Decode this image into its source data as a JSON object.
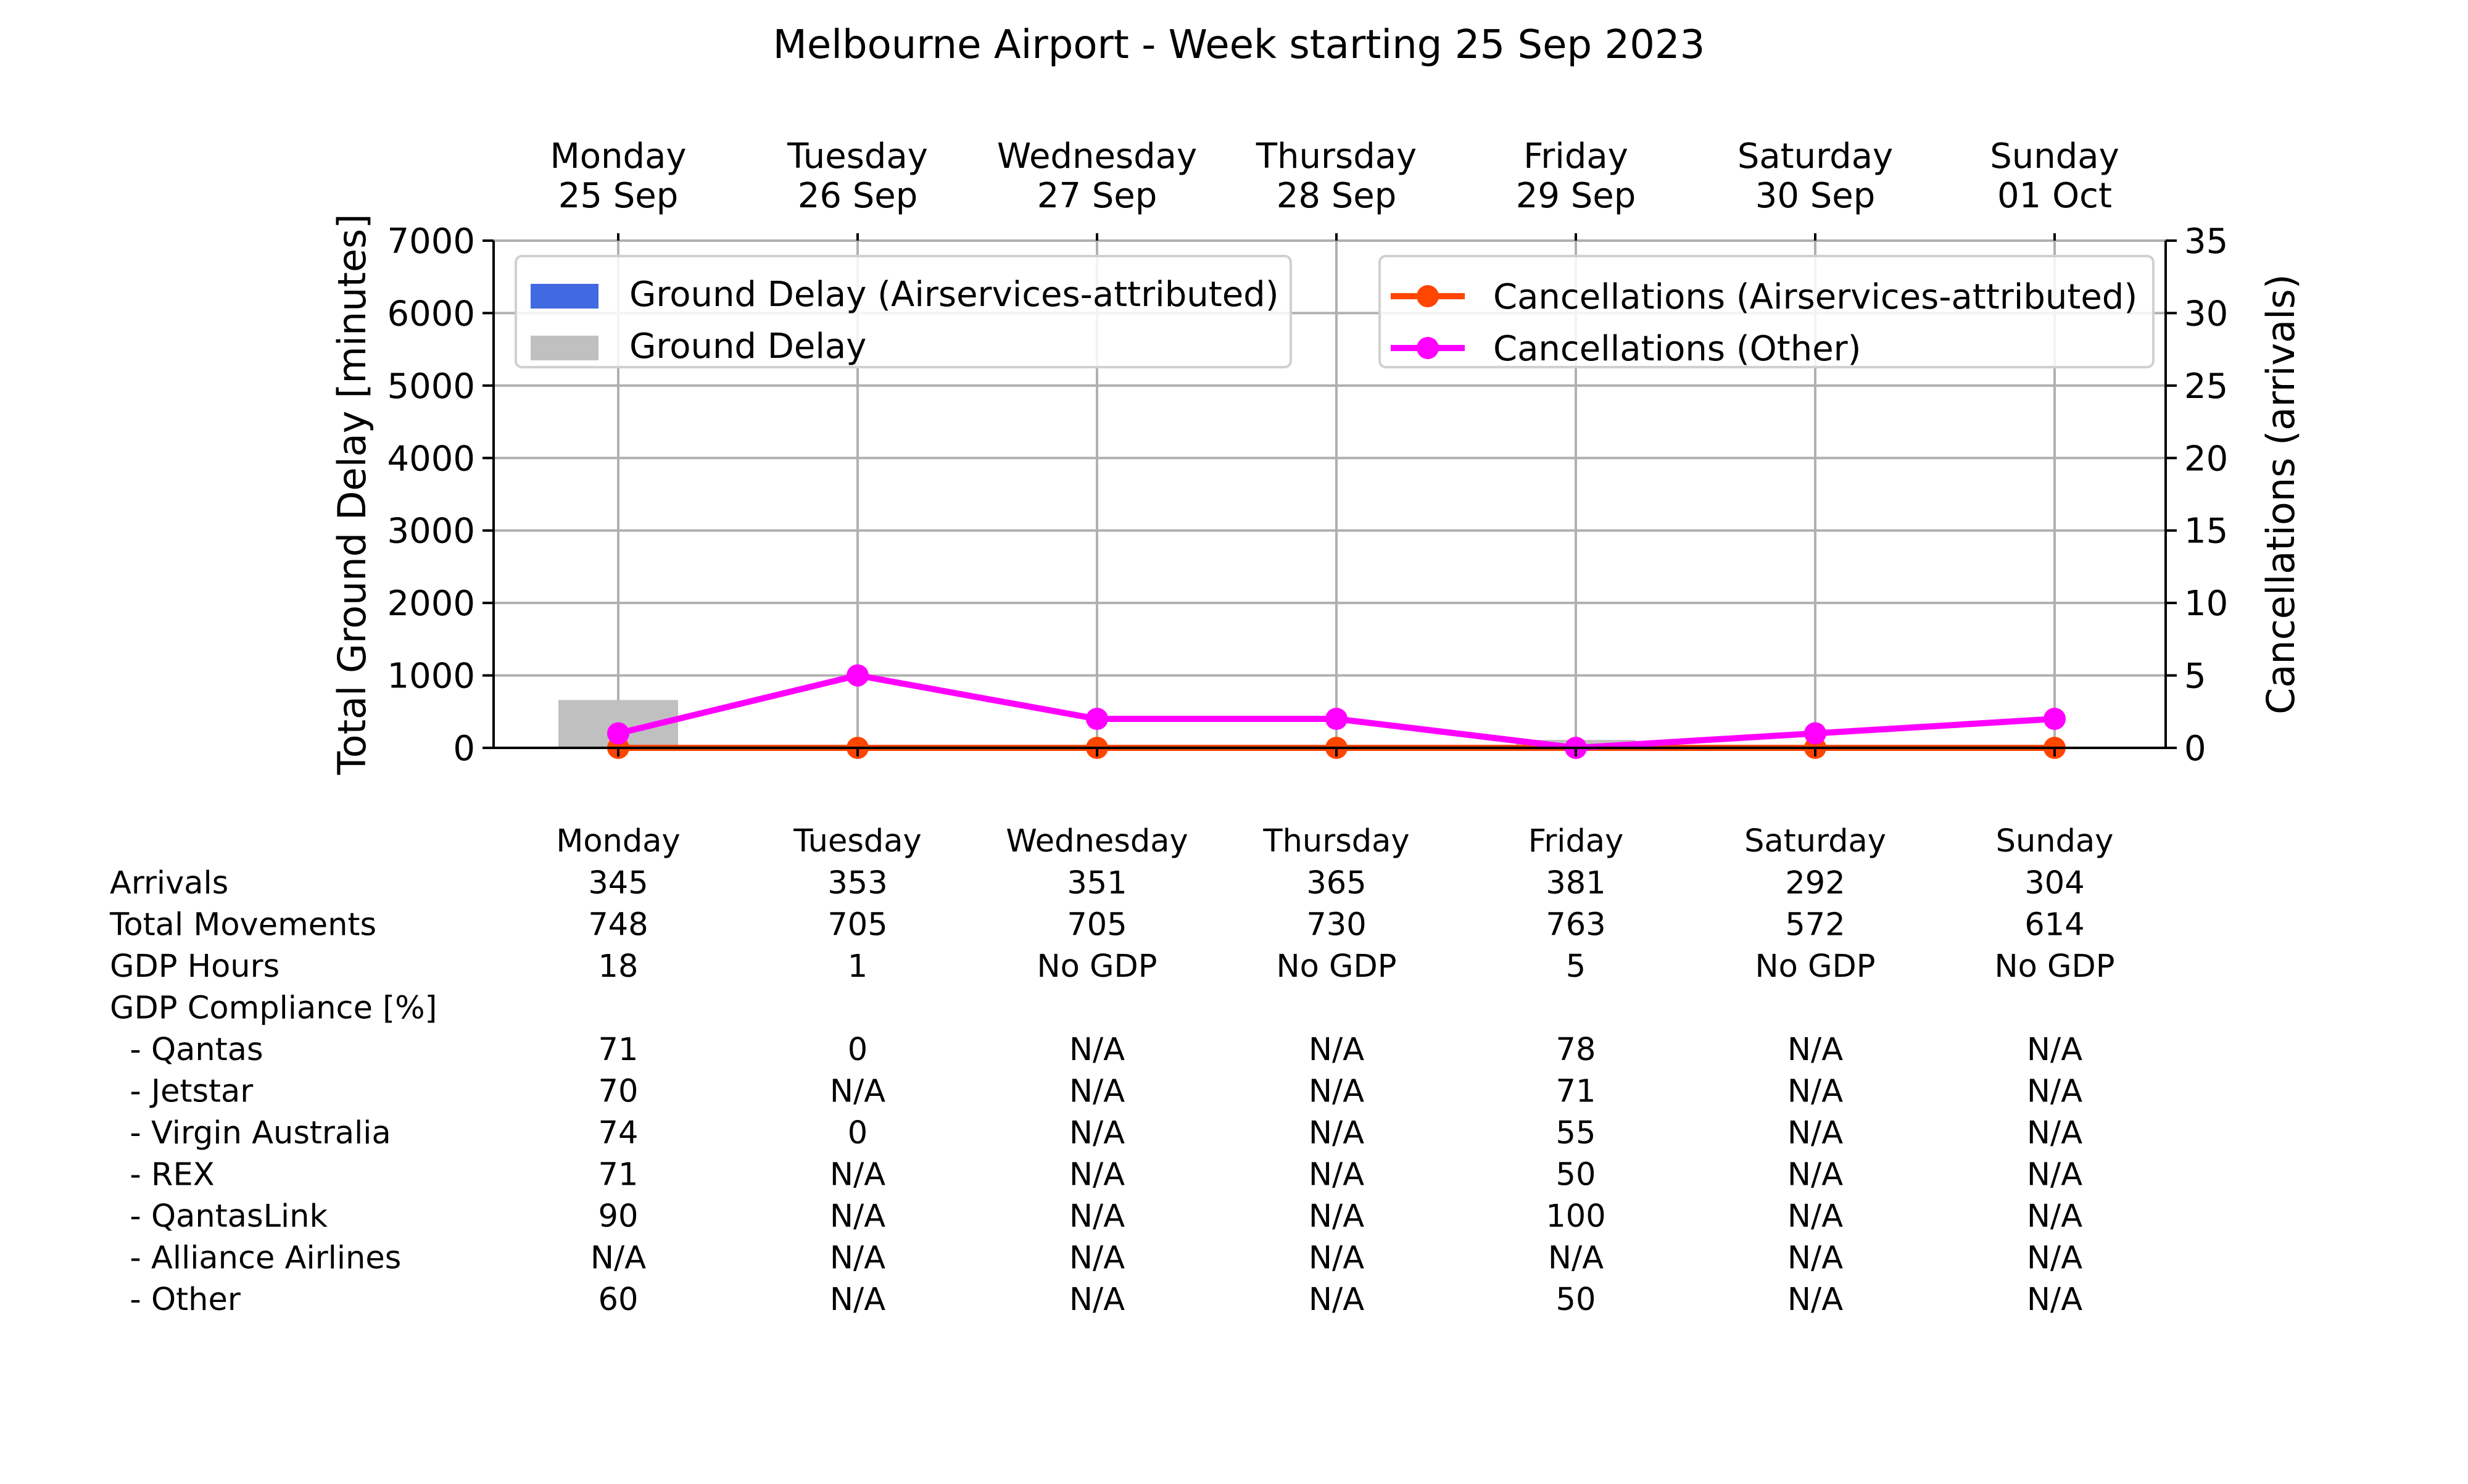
{
  "chart_data": {
    "type": "bar",
    "title": "Melbourne Airport - Week starting 25 Sep 2023",
    "categories": [
      [
        "Monday",
        "25 Sep"
      ],
      [
        "Tuesday",
        "26 Sep"
      ],
      [
        "Wednesday",
        "27 Sep"
      ],
      [
        "Thursday",
        "28 Sep"
      ],
      [
        "Friday",
        "29 Sep"
      ],
      [
        "Saturday",
        "30 Sep"
      ],
      [
        "Sunday",
        "01 Oct"
      ]
    ],
    "ylabel": "Total Ground Delay [minutes]",
    "ylabel_right": "Cancellations (arrivals)",
    "ylim": [
      0,
      7000
    ],
    "ylim_right": [
      0,
      35
    ],
    "yticks": [
      0,
      1000,
      2000,
      3000,
      4000,
      5000,
      6000,
      7000
    ],
    "yticks_right": [
      0,
      5,
      10,
      15,
      20,
      25,
      30,
      35
    ],
    "grid": true,
    "bar_series": [
      {
        "name": "Ground Delay (Airservices-attributed)",
        "color": "#4169e1",
        "values": [
          0,
          0,
          0,
          0,
          0,
          0,
          0
        ]
      },
      {
        "name": "Ground Delay",
        "color": "#c0c0c0",
        "values": [
          660,
          0,
          0,
          0,
          110,
          0,
          0
        ]
      }
    ],
    "line_series": [
      {
        "name": "Cancellations (Airservices-attributed)",
        "color": "#ff4500",
        "values": [
          0,
          0,
          0,
          0,
          0,
          0,
          0
        ]
      },
      {
        "name": "Cancellations (Other)",
        "color": "#ff00ff",
        "values": [
          1,
          5,
          2,
          2,
          0,
          1,
          2
        ]
      }
    ],
    "legend_left_placement": "top-left",
    "legend_right_placement": "top-right",
    "table": {
      "columns": [
        "Monday",
        "Tuesday",
        "Wednesday",
        "Thursday",
        "Friday",
        "Saturday",
        "Sunday"
      ],
      "rows": [
        {
          "label": "Arrivals",
          "values": [
            "345",
            "353",
            "351",
            "365",
            "381",
            "292",
            "304"
          ]
        },
        {
          "label": "Total Movements",
          "values": [
            "748",
            "705",
            "705",
            "730",
            "763",
            "572",
            "614"
          ]
        },
        {
          "label": "GDP Hours",
          "values": [
            "18",
            "1",
            "No GDP",
            "No GDP",
            "5",
            "No GDP",
            "No GDP"
          ]
        },
        {
          "label": "GDP Compliance [%]",
          "values": [
            "",
            "",
            "",
            "",
            "",
            "",
            ""
          ]
        },
        {
          "label": "  - Qantas",
          "values": [
            "71",
            "0",
            "N/A",
            "N/A",
            "78",
            "N/A",
            "N/A"
          ]
        },
        {
          "label": "  - Jetstar",
          "values": [
            "70",
            "N/A",
            "N/A",
            "N/A",
            "71",
            "N/A",
            "N/A"
          ]
        },
        {
          "label": "  - Virgin Australia",
          "values": [
            "74",
            "0",
            "N/A",
            "N/A",
            "55",
            "N/A",
            "N/A"
          ]
        },
        {
          "label": "  - REX",
          "values": [
            "71",
            "N/A",
            "N/A",
            "N/A",
            "50",
            "N/A",
            "N/A"
          ]
        },
        {
          "label": "  - QantasLink",
          "values": [
            "90",
            "N/A",
            "N/A",
            "N/A",
            "100",
            "N/A",
            "N/A"
          ]
        },
        {
          "label": "  - Alliance Airlines",
          "values": [
            "N/A",
            "N/A",
            "N/A",
            "N/A",
            "N/A",
            "N/A",
            "N/A"
          ]
        },
        {
          "label": "  - Other",
          "values": [
            "60",
            "N/A",
            "N/A",
            "N/A",
            "50",
            "N/A",
            "N/A"
          ]
        }
      ]
    }
  }
}
